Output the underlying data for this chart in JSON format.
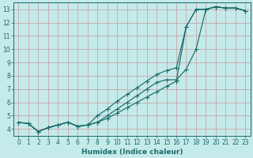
{
  "xlabel": "Humidex (Indice chaleur)",
  "xlim": [
    -0.5,
    23.5
  ],
  "ylim": [
    3.5,
    13.5
  ],
  "xticks": [
    0,
    1,
    2,
    3,
    4,
    5,
    6,
    7,
    8,
    9,
    10,
    11,
    12,
    13,
    14,
    15,
    16,
    17,
    18,
    19,
    20,
    21,
    22,
    23
  ],
  "yticks": [
    4,
    5,
    6,
    7,
    8,
    9,
    10,
    11,
    12,
    13
  ],
  "bg_color": "#c5eaea",
  "grid_color": "#c8a8a8",
  "line_color": "#1a6b6b",
  "line1_x": [
    0,
    1,
    2,
    3,
    4,
    5,
    6,
    7,
    8,
    9,
    10,
    11,
    12,
    13,
    14,
    15,
    16,
    17,
    18,
    19,
    20,
    21,
    22,
    23
  ],
  "line1_y": [
    4.5,
    4.4,
    3.8,
    4.1,
    4.3,
    4.5,
    4.2,
    4.3,
    4.5,
    5.0,
    5.5,
    6.0,
    6.5,
    7.0,
    7.5,
    7.7,
    7.7,
    8.5,
    10.0,
    13.0,
    13.2,
    13.1,
    13.1,
    12.9
  ],
  "line2_x": [
    0,
    1,
    2,
    3,
    4,
    5,
    6,
    7,
    8,
    9,
    10,
    11,
    12,
    13,
    14,
    15,
    16,
    17,
    18,
    19,
    20,
    21,
    22,
    23
  ],
  "line2_y": [
    4.5,
    4.4,
    3.8,
    4.1,
    4.3,
    4.5,
    4.2,
    4.3,
    5.0,
    5.5,
    6.1,
    6.6,
    7.1,
    7.6,
    8.1,
    8.4,
    8.6,
    11.7,
    13.0,
    13.0,
    13.2,
    13.1,
    13.1,
    12.9
  ],
  "line3_x": [
    0,
    1,
    2,
    3,
    4,
    5,
    6,
    7,
    8,
    9,
    10,
    11,
    12,
    13,
    14,
    15,
    16,
    17,
    18,
    19,
    20,
    21,
    22,
    23
  ],
  "line3_y": [
    4.5,
    4.4,
    3.8,
    4.1,
    4.3,
    4.5,
    4.2,
    4.3,
    4.5,
    4.8,
    5.2,
    5.6,
    6.0,
    6.4,
    6.8,
    7.2,
    7.6,
    11.7,
    13.0,
    13.0,
    13.2,
    13.1,
    13.1,
    12.9
  ]
}
